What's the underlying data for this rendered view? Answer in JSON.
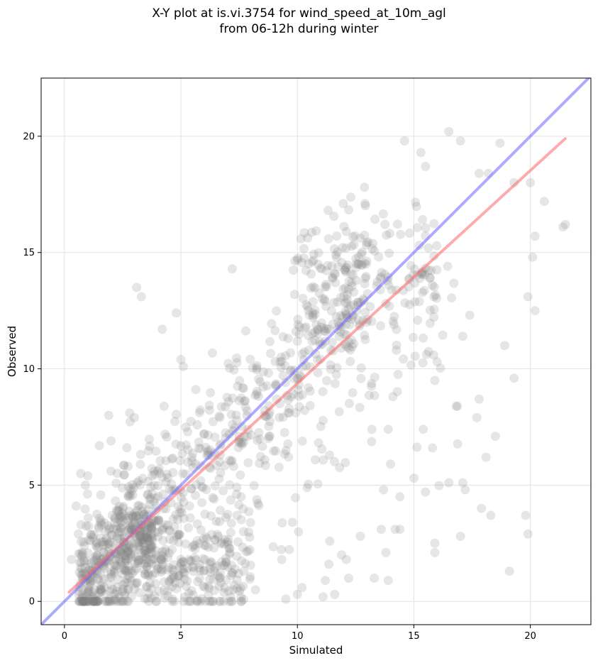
{
  "chart_data": {
    "type": "scatter",
    "title": "X-Y plot at is.vi.3754 for wind_speed_at_10m_agl",
    "subtitle": "from 06-12h during winter",
    "xlabel": "Simulated",
    "ylabel": "Observed",
    "xlim": [
      -1,
      22.6
    ],
    "ylim": [
      -1,
      22.5
    ],
    "xticks": [
      0,
      5,
      10,
      15,
      20
    ],
    "yticks": [
      0,
      5,
      10,
      15,
      20
    ],
    "grid": true,
    "legend": "none",
    "point_color": "#808080",
    "lines": [
      {
        "role": "1:1 line",
        "color": "#6666ff",
        "x": [
          -1,
          22.6
        ],
        "y": [
          -1,
          22.6
        ]
      },
      {
        "role": "regression fit",
        "color": "#ff6666",
        "x": [
          0.2,
          21.5
        ],
        "y": [
          0.4,
          19.9
        ]
      }
    ],
    "point_count": 1500,
    "points": [
      [
        0.3,
        1.8
      ],
      [
        0.5,
        4.1
      ],
      [
        0.6,
        2.9
      ],
      [
        0.7,
        5.5
      ],
      [
        0.9,
        5.0
      ],
      [
        1.0,
        5.4
      ],
      [
        0.8,
        0.5
      ],
      [
        1.2,
        0.2
      ],
      [
        3.1,
        13.5
      ],
      [
        3.3,
        13.1
      ],
      [
        4.2,
        11.7
      ],
      [
        4.8,
        12.4
      ],
      [
        5.0,
        10.4
      ],
      [
        5.1,
        10.1
      ],
      [
        7.2,
        14.3
      ],
      [
        1.5,
        6.7
      ],
      [
        1.9,
        8.0
      ],
      [
        2.0,
        6.9
      ],
      [
        2.8,
        8.1
      ],
      [
        3.0,
        7.9
      ],
      [
        2.0,
        5.6
      ],
      [
        16.5,
        20.2
      ],
      [
        17.0,
        19.8
      ],
      [
        18.7,
        19.7
      ],
      [
        15.3,
        19.3
      ],
      [
        15.5,
        18.7
      ],
      [
        14.6,
        19.8
      ],
      [
        18.2,
        18.4
      ],
      [
        17.8,
        18.4
      ],
      [
        19.3,
        18.0
      ],
      [
        20.0,
        18.0
      ],
      [
        20.6,
        17.2
      ],
      [
        20.2,
        15.7
      ],
      [
        20.1,
        14.8
      ],
      [
        20.2,
        12.5
      ],
      [
        19.9,
        13.1
      ],
      [
        21.4,
        16.1
      ],
      [
        21.5,
        16.2
      ],
      [
        18.9,
        11.0
      ],
      [
        17.1,
        11.4
      ],
      [
        17.4,
        12.3
      ],
      [
        16.0,
        10.3
      ],
      [
        15.9,
        9.5
      ],
      [
        19.3,
        9.6
      ],
      [
        17.8,
        8.7
      ],
      [
        17.7,
        7.9
      ],
      [
        18.5,
        7.1
      ],
      [
        18.1,
        6.2
      ],
      [
        15.8,
        6.6
      ],
      [
        15.4,
        7.4
      ],
      [
        16.5,
        5.1
      ],
      [
        17.1,
        5.1
      ],
      [
        17.2,
        4.8
      ],
      [
        15.5,
        4.7
      ],
      [
        15.0,
        5.3
      ],
      [
        14.0,
        5.9
      ],
      [
        13.7,
        4.8
      ],
      [
        14.4,
        4.5
      ],
      [
        17.9,
        4.0
      ],
      [
        18.3,
        3.7
      ],
      [
        19.8,
        3.7
      ],
      [
        19.9,
        2.9
      ],
      [
        17.0,
        2.8
      ],
      [
        15.9,
        2.5
      ],
      [
        15.9,
        2.1
      ],
      [
        19.1,
        1.3
      ],
      [
        13.9,
        7.4
      ],
      [
        13.2,
        7.4
      ],
      [
        14.1,
        8.8
      ],
      [
        13.6,
        3.1
      ],
      [
        14.2,
        3.1
      ],
      [
        14.4,
        3.1
      ],
      [
        13.8,
        2.1
      ],
      [
        12.7,
        2.8
      ],
      [
        11.9,
        2.0
      ],
      [
        12.1,
        1.8
      ],
      [
        13.3,
        1.0
      ],
      [
        13.9,
        0.9
      ],
      [
        12.2,
        1.0
      ],
      [
        11.2,
        0.9
      ],
      [
        11.6,
        0.3
      ],
      [
        11.1,
        0.2
      ],
      [
        10.2,
        0.6
      ],
      [
        9.5,
        0.1
      ],
      [
        10.0,
        0.3
      ],
      [
        8.2,
        0.5
      ]
    ]
  }
}
